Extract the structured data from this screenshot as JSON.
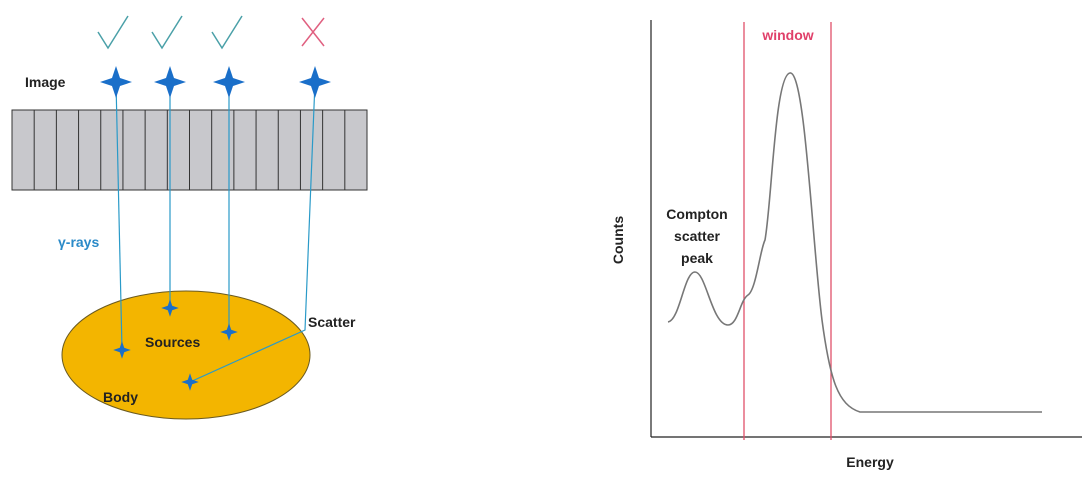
{
  "left": {
    "image_label": "Image",
    "rays_label": "γ-rays",
    "sources_label": "Sources",
    "body_label": "Body",
    "scatter_label": "Scatter"
  },
  "right": {
    "window_label": "window",
    "y_label": "Counts",
    "x_label": "Energy",
    "peak_label": [
      "Compton",
      "scatter",
      "peak"
    ]
  }
}
